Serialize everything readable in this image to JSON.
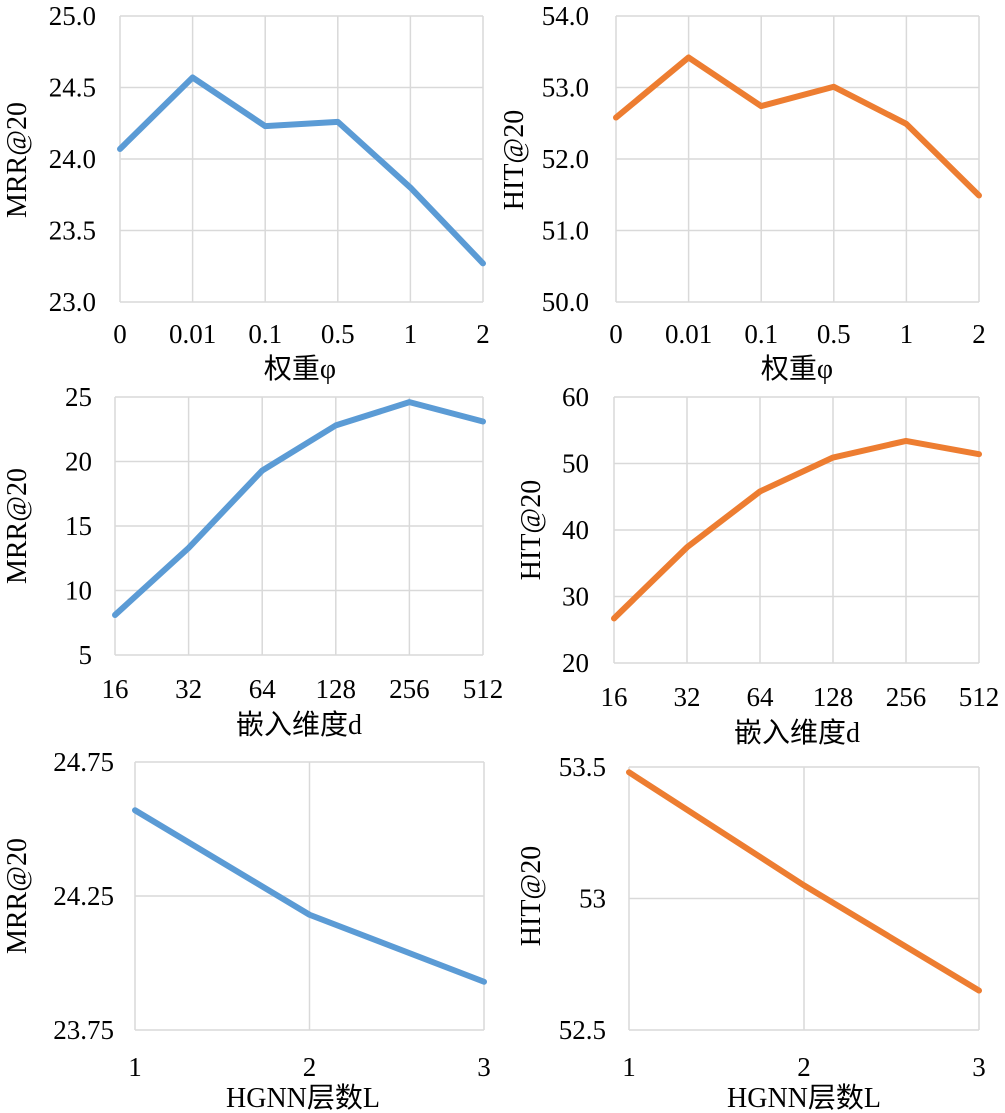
{
  "colors": {
    "blue": "#5b9bd5",
    "orange": "#ed7d31",
    "grid": "#d9d9d9"
  },
  "chart_data": [
    {
      "type": "line",
      "categories": [
        "0",
        "0.01",
        "0.1",
        "0.5",
        "1",
        "2"
      ],
      "values": [
        24.07,
        24.57,
        24.23,
        24.26,
        23.8,
        23.27
      ],
      "xlabel": "权重φ",
      "ylabel": "MRR@20",
      "ylim": [
        23.0,
        25.0
      ],
      "yticks": [
        "23.0",
        "23.5",
        "24.0",
        "24.5",
        "25.0"
      ],
      "color": "#5b9bd5",
      "grid": true
    },
    {
      "type": "line",
      "categories": [
        "0",
        "0.01",
        "0.1",
        "0.5",
        "1",
        "2"
      ],
      "values": [
        52.58,
        53.42,
        52.74,
        53.01,
        52.49,
        51.49
      ],
      "xlabel": "权重φ",
      "ylabel": "HIT@20",
      "ylim": [
        50.0,
        54.0
      ],
      "yticks": [
        "50.0",
        "51.0",
        "52.0",
        "53.0",
        "54.0"
      ],
      "color": "#ed7d31",
      "grid": true
    },
    {
      "type": "line",
      "categories": [
        "16",
        "32",
        "64",
        "128",
        "256",
        "512"
      ],
      "values": [
        8.1,
        13.3,
        19.3,
        22.8,
        24.6,
        23.1
      ],
      "xlabel": "嵌入维度d",
      "ylabel": "MRR@20",
      "ylim": [
        5,
        25
      ],
      "yticks": [
        "5",
        "10",
        "15",
        "20",
        "25"
      ],
      "color": "#5b9bd5",
      "grid": true
    },
    {
      "type": "line",
      "categories": [
        "16",
        "32",
        "64",
        "128",
        "256",
        "512"
      ],
      "values": [
        26.7,
        37.4,
        45.8,
        50.9,
        53.4,
        51.4
      ],
      "xlabel": "嵌入维度d",
      "ylabel": "HIT@20",
      "ylim": [
        20,
        60
      ],
      "yticks": [
        "20",
        "30",
        "40",
        "50",
        "60"
      ],
      "color": "#ed7d31",
      "grid": true
    },
    {
      "type": "line",
      "categories": [
        "1",
        "2",
        "3"
      ],
      "values": [
        24.57,
        24.18,
        23.93
      ],
      "xlabel": "HGNN层数L",
      "ylabel": "MRR@20",
      "ylim": [
        23.75,
        24.75
      ],
      "yticks": [
        "23.75",
        "24.25",
        "24.75"
      ],
      "color": "#5b9bd5",
      "grid": true
    },
    {
      "type": "line",
      "categories": [
        "1",
        "2",
        "3"
      ],
      "values": [
        53.48,
        53.05,
        52.65
      ],
      "xlabel": "HGNN层数L",
      "ylabel": "HIT@20",
      "ylim": [
        52.5,
        53.5
      ],
      "yticks": [
        "52.5",
        "53",
        "53.5"
      ],
      "color": "#ed7d31",
      "grid": true
    }
  ]
}
